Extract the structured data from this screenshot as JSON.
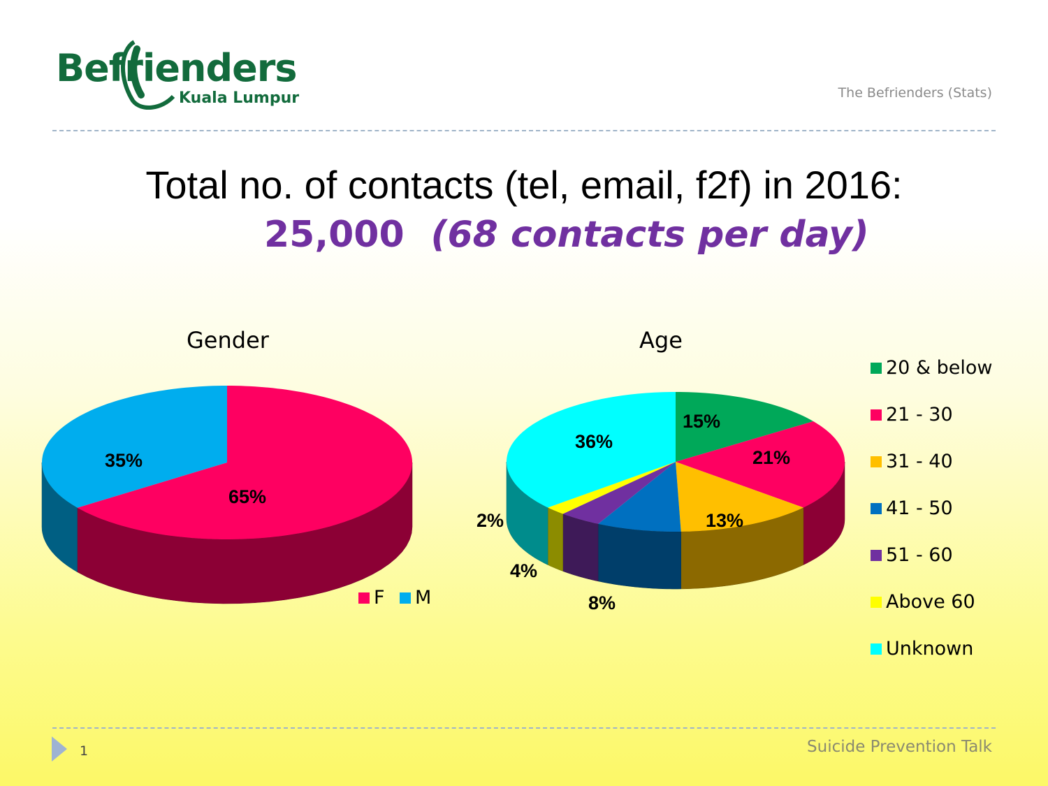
{
  "logo": {
    "main": "Befrienders",
    "sub": "Kuala Lumpur"
  },
  "header": {
    "right_text": "The Befrienders (Stats)"
  },
  "title": {
    "line1": "Total no. of contacts (tel, email, f2f) in 2016:",
    "number": "25,000",
    "per_day": "(68 contacts per day)"
  },
  "colors": {
    "female": "#fe0061",
    "male": "#00adee",
    "age_20_below": "#00a859",
    "age_21_30": "#fe0061",
    "age_31_40": "#ffbf00",
    "age_41_50": "#0070c0",
    "age_51_60": "#7030a0",
    "age_above_60": "#ffff00",
    "age_unknown": "#00ffff",
    "logo_green": "#126b3c",
    "title_purple": "#7030a0"
  },
  "chart_data": [
    {
      "type": "pie",
      "title": "Gender",
      "categories": [
        "F",
        "M"
      ],
      "values": [
        65,
        35
      ],
      "labels": [
        "65%",
        "35%"
      ],
      "legend_position": "bottom-right"
    },
    {
      "type": "pie",
      "title": "Age",
      "categories": [
        "20 & below",
        "21 - 30",
        "31 - 40",
        "41 - 50",
        "51 - 60",
        "Above 60",
        "Unknown"
      ],
      "values": [
        15,
        21,
        13,
        8,
        4,
        2,
        36
      ],
      "labels": [
        "15%",
        "21%",
        "13%",
        "8%",
        "4%",
        "2%",
        "36%"
      ],
      "legend_position": "right"
    }
  ],
  "footer": {
    "page_number": "1",
    "right_text": "Suicide Prevention Talk"
  }
}
